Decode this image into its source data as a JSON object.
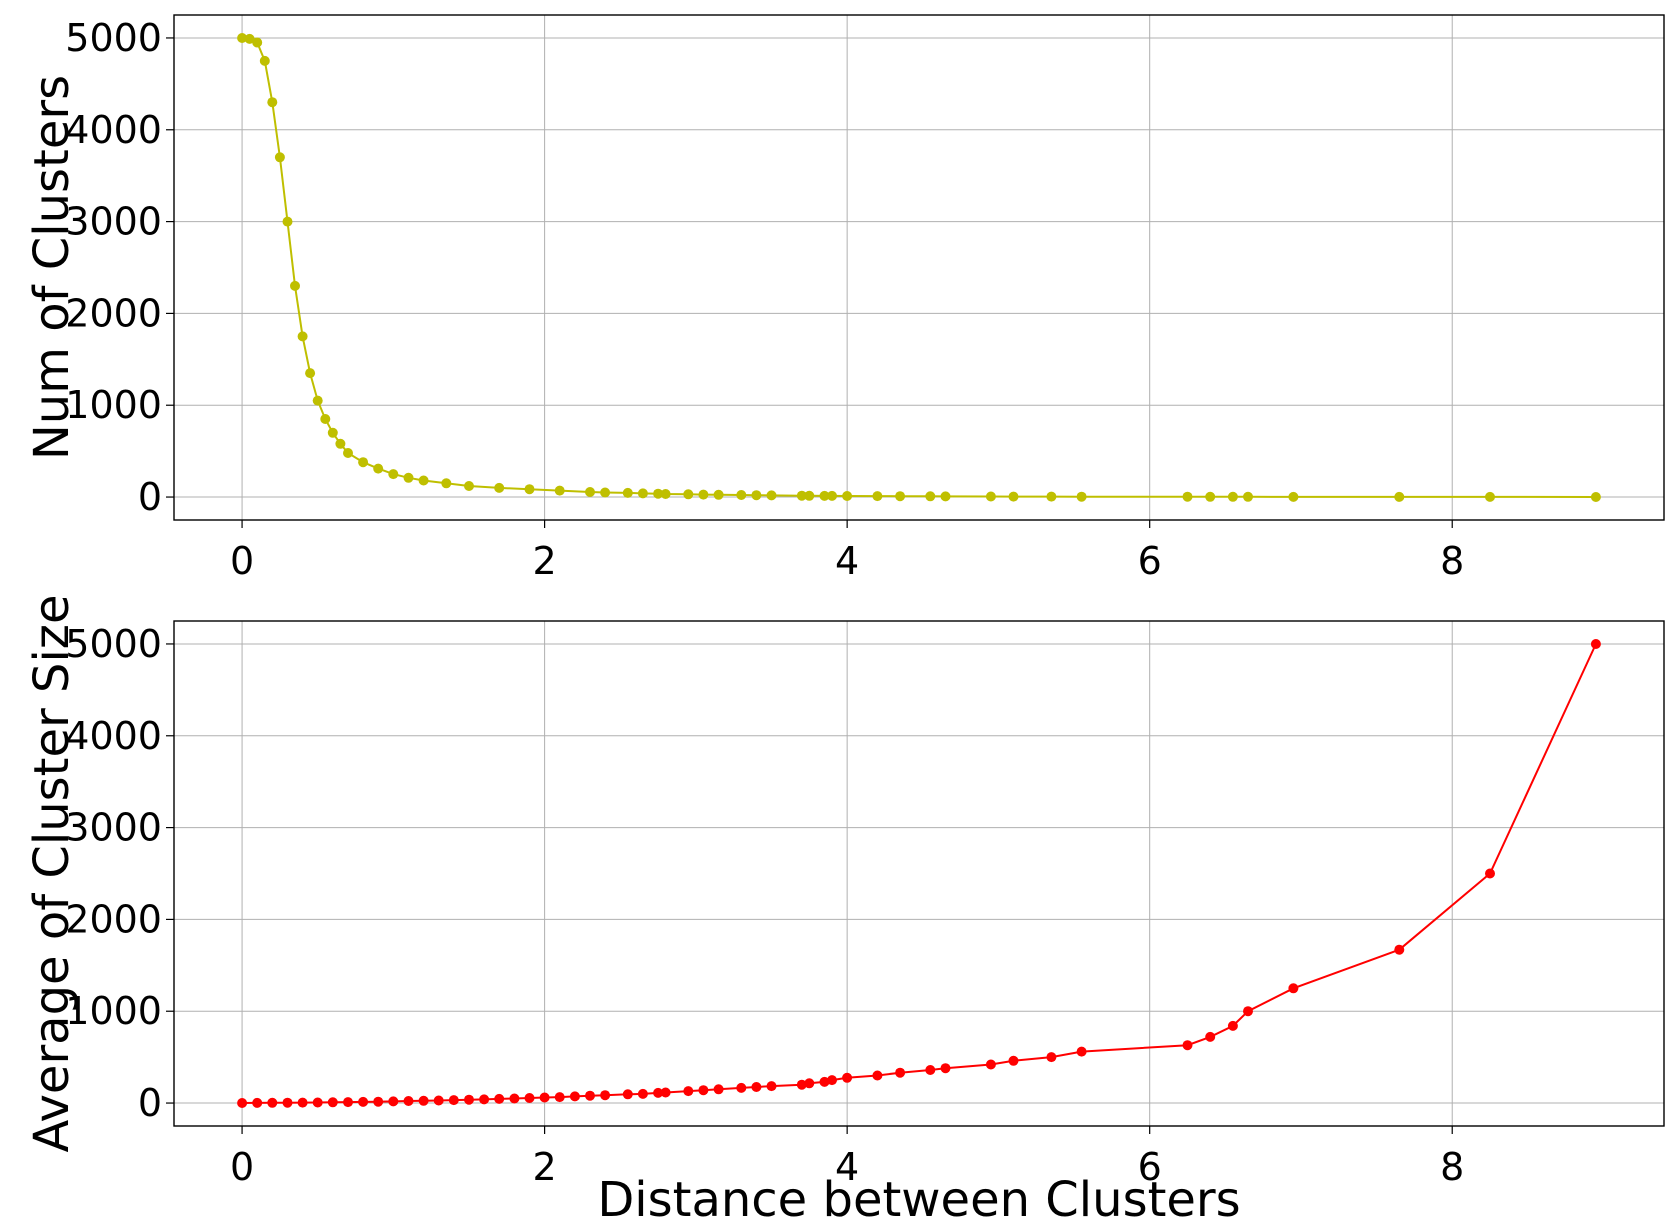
{
  "chart_data": [
    {
      "type": "scatter",
      "mode": "line+markers",
      "xlabel": "",
      "ylabel": "Num of Clusters",
      "xlim": [
        -0.45,
        9.4
      ],
      "ylim": [
        -250,
        5250
      ],
      "xticks": [
        0,
        2,
        4,
        6,
        8
      ],
      "yticks": [
        0,
        1000,
        2000,
        3000,
        4000,
        5000
      ],
      "grid": true,
      "color": "#bfbf00",
      "series": [
        {
          "x": [
            0,
            0.05,
            0.1,
            0.15,
            0.2,
            0.25,
            0.3,
            0.35,
            0.4,
            0.45,
            0.5,
            0.55,
            0.6,
            0.65,
            0.7,
            0.8,
            0.9,
            1.0,
            1.1,
            1.2,
            1.35,
            1.5,
            1.7,
            1.9,
            2.1,
            2.3,
            2.4,
            2.55,
            2.65,
            2.75,
            2.8,
            2.95,
            3.05,
            3.15,
            3.3,
            3.4,
            3.5,
            3.7,
            3.75,
            3.85,
            3.9,
            4.0,
            4.2,
            4.35,
            4.55,
            4.65,
            4.95,
            5.1,
            5.35,
            5.55,
            6.25,
            6.4,
            6.55,
            6.65,
            6.95,
            7.65,
            8.25,
            8.95
          ],
          "y": [
            5000,
            4990,
            4950,
            4750,
            4300,
            3700,
            3000,
            2300,
            1750,
            1350,
            1050,
            850,
            700,
            580,
            480,
            380,
            310,
            250,
            210,
            180,
            150,
            120,
            100,
            85,
            70,
            55,
            50,
            45,
            40,
            36,
            33,
            30,
            27,
            25,
            22,
            20,
            18,
            15,
            14,
            13,
            12,
            11,
            10,
            9,
            8,
            7,
            6,
            5,
            5,
            4,
            4,
            3,
            3,
            3,
            2,
            2,
            2,
            1
          ]
        }
      ]
    },
    {
      "type": "scatter",
      "mode": "line+markers",
      "xlabel": "Distance between Clusters",
      "ylabel": "Average of Cluster Size",
      "xlim": [
        -0.45,
        9.4
      ],
      "ylim": [
        -250,
        5250
      ],
      "xticks": [
        0,
        2,
        4,
        6,
        8
      ],
      "yticks": [
        0,
        1000,
        2000,
        3000,
        4000,
        5000
      ],
      "grid": true,
      "color": "#ff0000",
      "series": [
        {
          "x": [
            0,
            0.1,
            0.2,
            0.3,
            0.4,
            0.5,
            0.6,
            0.7,
            0.8,
            0.9,
            1.0,
            1.1,
            1.2,
            1.3,
            1.4,
            1.5,
            1.6,
            1.7,
            1.8,
            1.9,
            2.0,
            2.1,
            2.2,
            2.3,
            2.4,
            2.55,
            2.65,
            2.75,
            2.8,
            2.95,
            3.05,
            3.15,
            3.3,
            3.4,
            3.5,
            3.7,
            3.75,
            3.85,
            3.9,
            4.0,
            4.2,
            4.35,
            4.55,
            4.65,
            4.95,
            5.1,
            5.35,
            5.55,
            6.25,
            6.4,
            6.55,
            6.65,
            6.95,
            7.65,
            8.25,
            8.95
          ],
          "y": [
            1,
            2,
            3,
            4,
            5,
            6,
            8,
            10,
            12,
            15,
            18,
            22,
            25,
            28,
            32,
            36,
            40,
            45,
            50,
            55,
            60,
            65,
            72,
            80,
            85,
            95,
            100,
            110,
            115,
            130,
            140,
            150,
            165,
            175,
            185,
            200,
            215,
            230,
            250,
            275,
            300,
            330,
            360,
            380,
            420,
            460,
            500,
            560,
            630,
            720,
            840,
            1000,
            1250,
            1670,
            2500,
            5000
          ]
        }
      ]
    }
  ]
}
